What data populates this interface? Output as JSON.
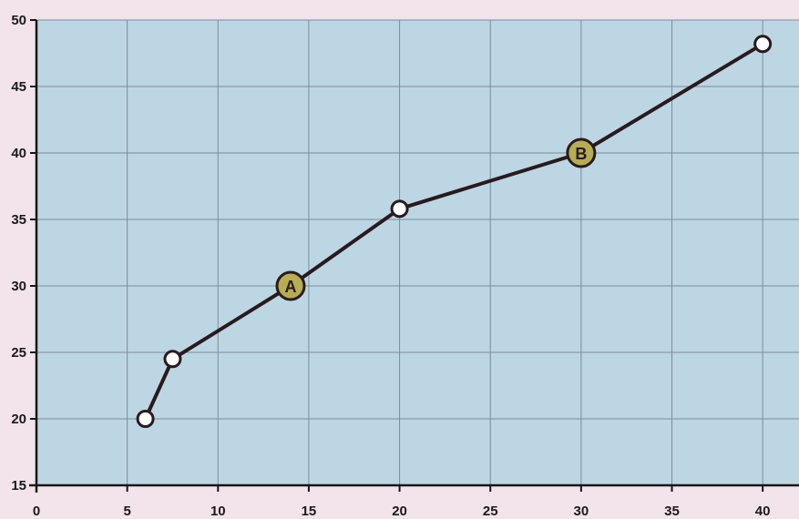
{
  "colors": {
    "plot_background": "#bcd6e4",
    "grid": "#7d8c99",
    "axis": "#161616",
    "line": "#2a1a1c",
    "point_fill": "#ffffff",
    "highlight_fill": "#b7ad52",
    "page_background": "#f2e4ea"
  },
  "chart_data": {
    "type": "line",
    "xlim": [
      0,
      42
    ],
    "ylim": [
      15,
      50
    ],
    "x_ticks": [
      0,
      5,
      10,
      15,
      20,
      25,
      30,
      35,
      40
    ],
    "y_ticks": [
      15,
      20,
      25,
      30,
      35,
      40,
      45,
      50
    ],
    "grid": true,
    "series": [
      {
        "points": [
          {
            "x": 6,
            "y": 20
          },
          {
            "x": 7.5,
            "y": 24.5
          },
          {
            "x": 14,
            "y": 30,
            "label": "A"
          },
          {
            "x": 20,
            "y": 35.8
          },
          {
            "x": 30,
            "y": 40,
            "label": "B"
          },
          {
            "x": 40,
            "y": 48.2
          }
        ]
      }
    ]
  }
}
